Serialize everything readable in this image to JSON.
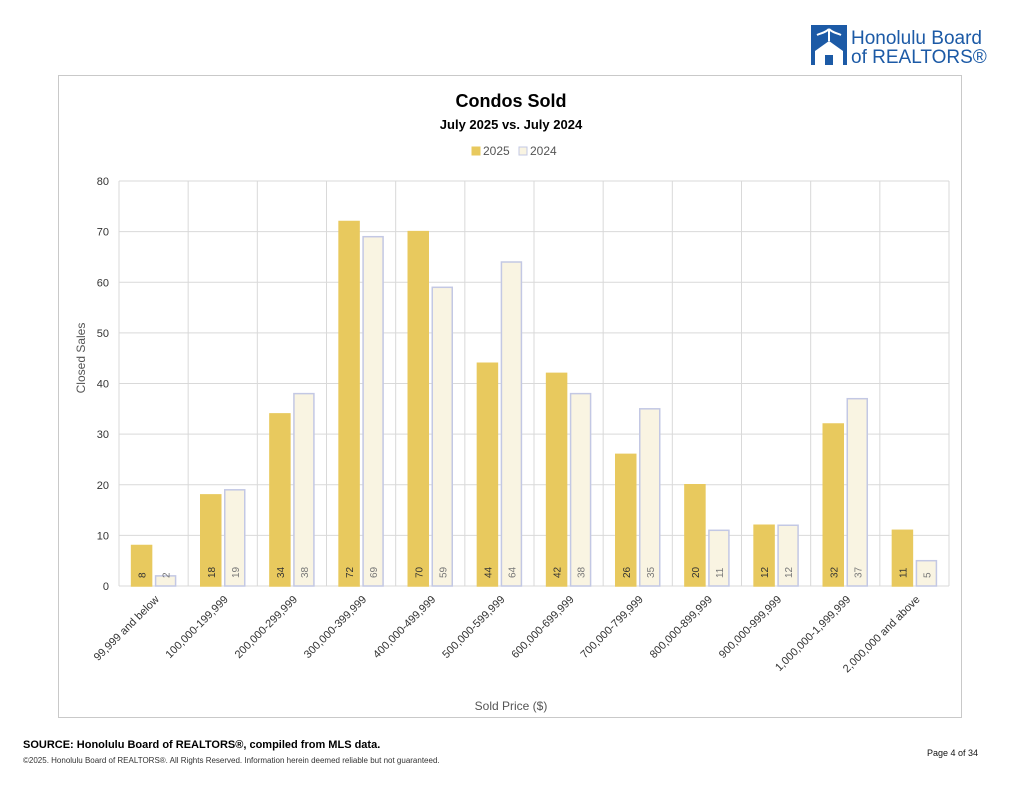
{
  "logo": {
    "line1": "Honolulu Board",
    "line2": "of REALTORS®",
    "color": "#1c5aa6"
  },
  "chart_data": {
    "type": "bar",
    "title": "Condos Sold",
    "subtitle": "July 2025 vs. July 2024",
    "xlabel": "Sold Price ($)",
    "ylabel": "Closed Sales",
    "ylim": [
      0,
      80
    ],
    "yticks": [
      0,
      10,
      20,
      30,
      40,
      50,
      60,
      70,
      80
    ],
    "grid": true,
    "legend_position": "top-center",
    "categories": [
      "99,999 and below",
      "100,000-199,999",
      "200,000-299,999",
      "300,000-399,999",
      "400,000-499,999",
      "500,000-599,999",
      "600,000-699,999",
      "700,000-799,999",
      "800,000-899,999",
      "900,000-999,999",
      "1,000,000-1,999,999",
      "2,000,000 and above"
    ],
    "series": [
      {
        "name": "2025",
        "values": [
          8,
          18,
          34,
          72,
          70,
          44,
          42,
          26,
          20,
          12,
          32,
          11
        ],
        "color": "#e8c95e",
        "stroke": "#e8c95e"
      },
      {
        "name": "2024",
        "values": [
          2,
          19,
          38,
          69,
          59,
          64,
          38,
          35,
          11,
          12,
          37,
          5
        ],
        "color": "#f9f4e2",
        "stroke": "#c3c8e4"
      }
    ]
  },
  "footer": {
    "source": "SOURCE: Honolulu Board of REALTORS®, compiled from MLS data.",
    "copyright": "©2025. Honolulu Board of REALTORS®. All Rights Reserved. Information herein deemed reliable but not guaranteed.",
    "page": "Page 4 of 34"
  }
}
